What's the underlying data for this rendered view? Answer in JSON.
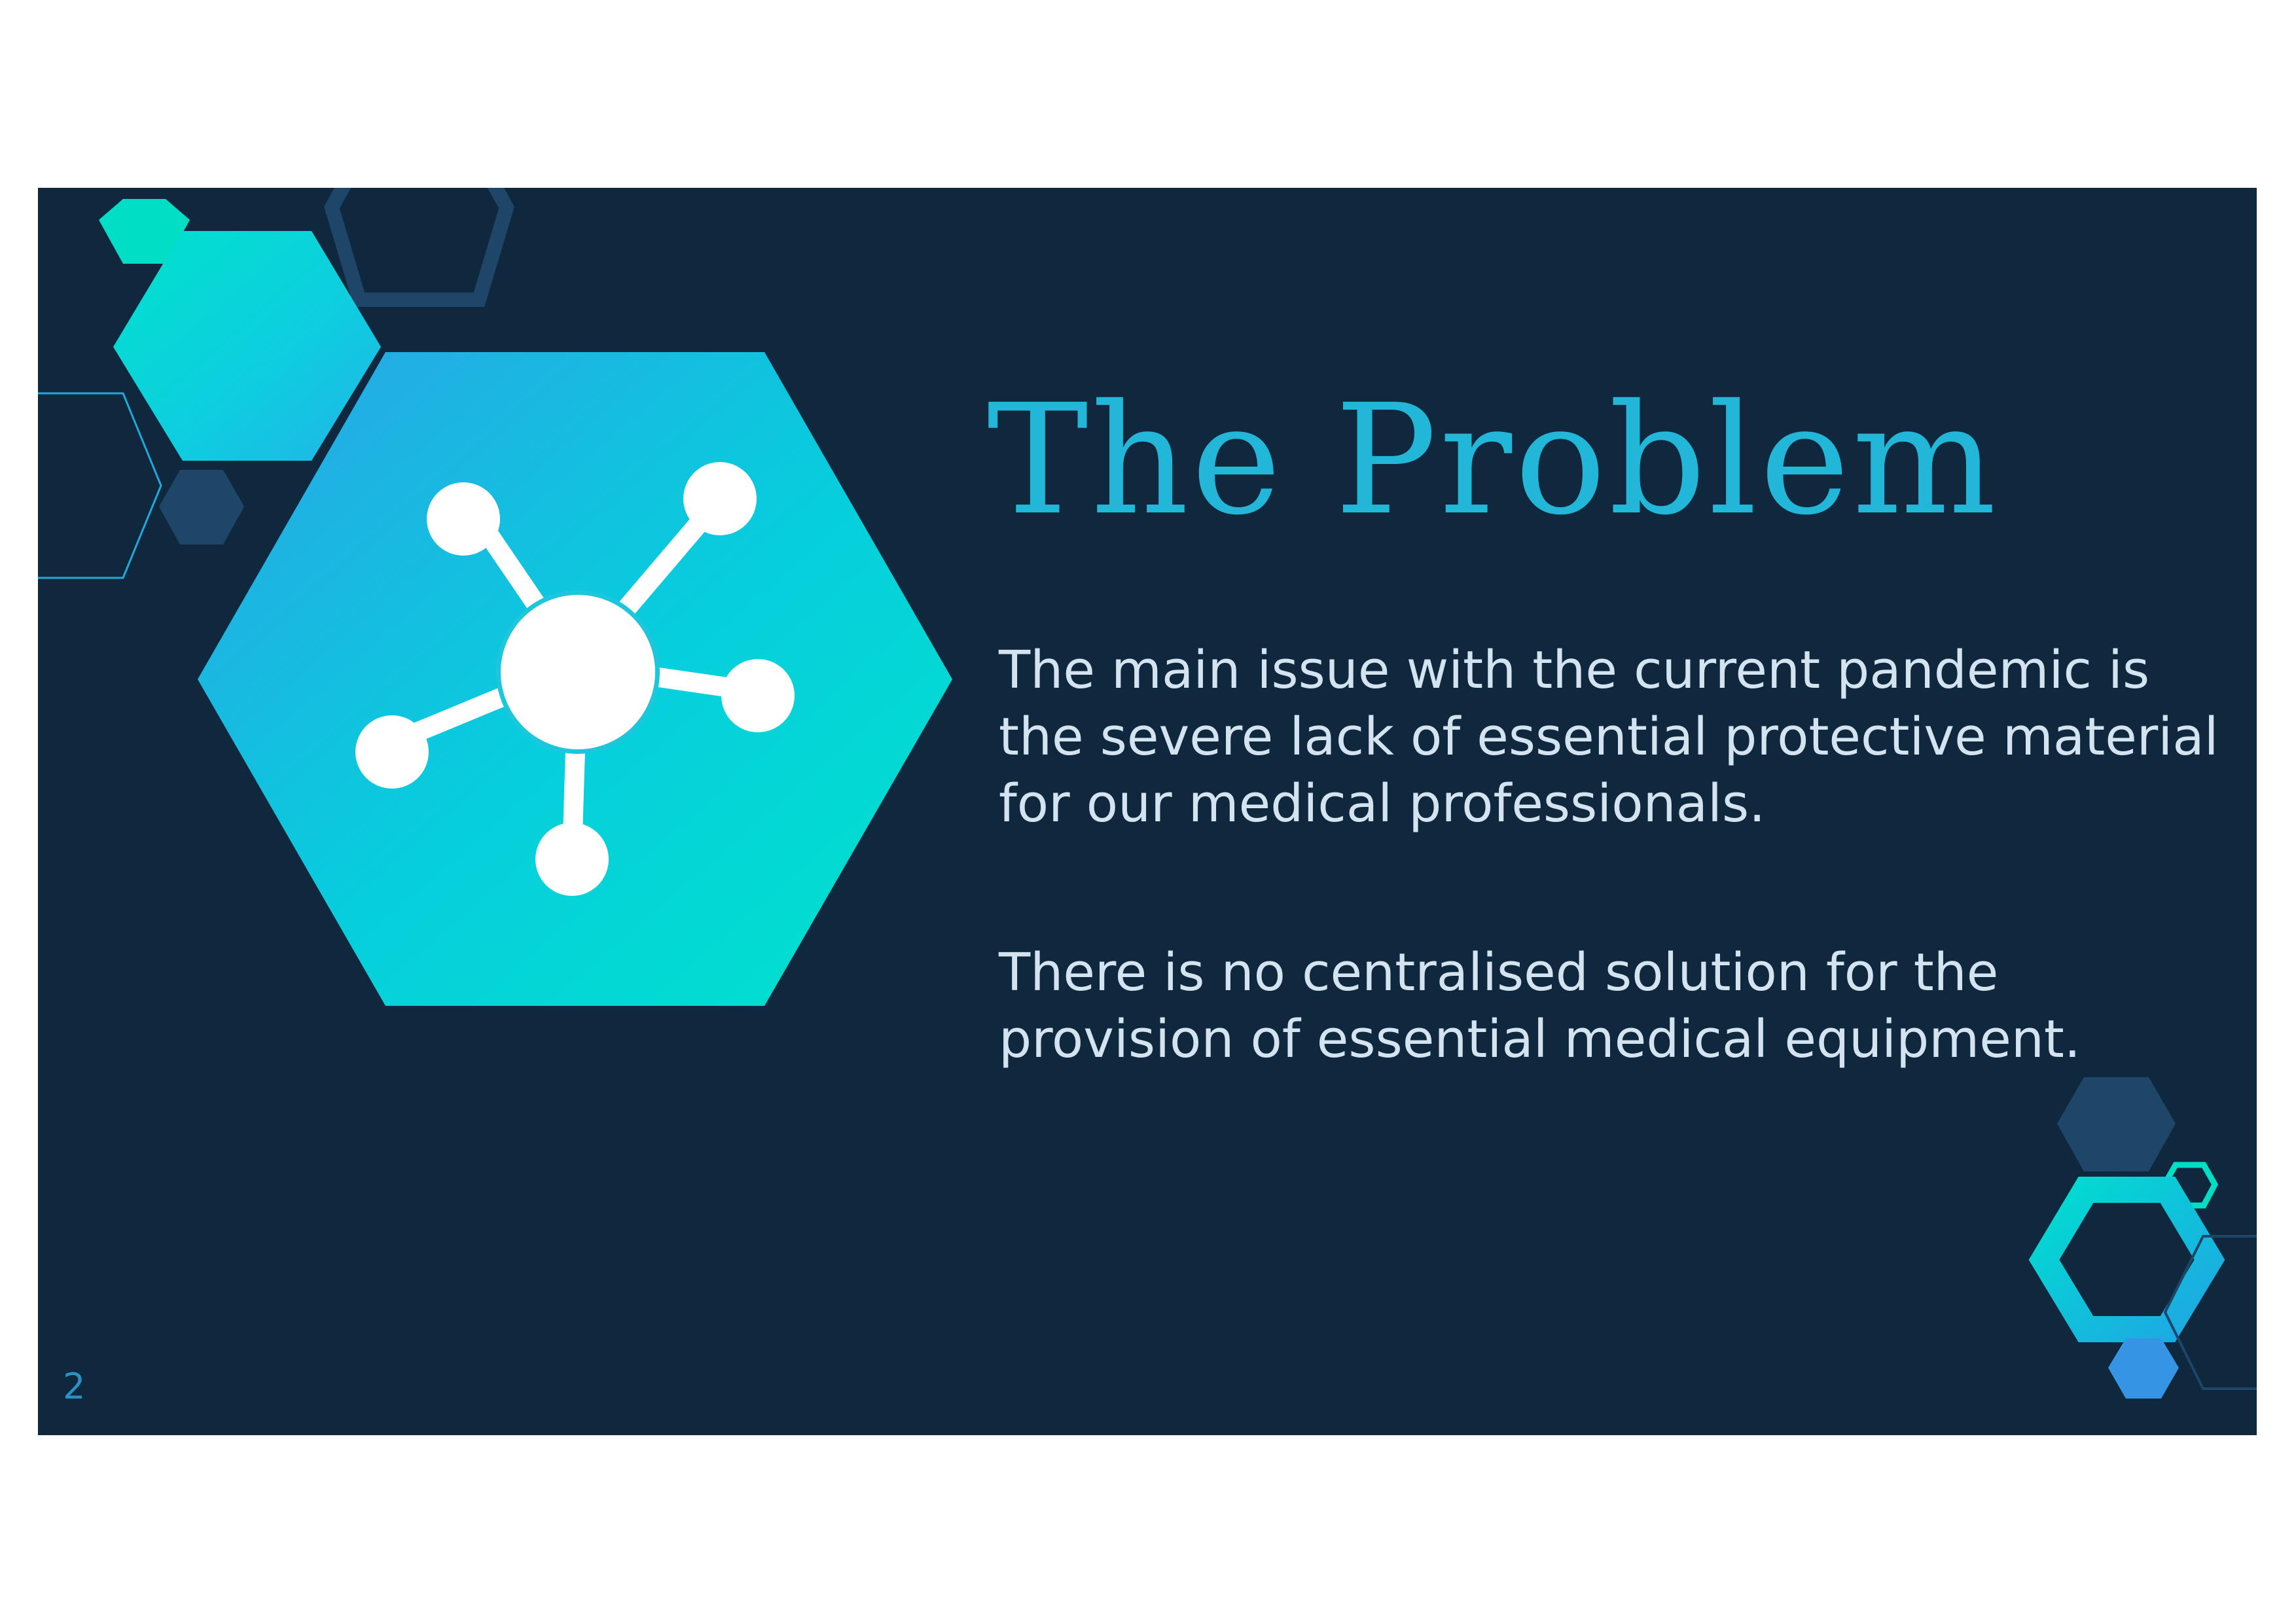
{
  "slide": {
    "title": "The Problem",
    "paragraphs": [
      "The main issue with the current pandemic is the severe lack of essential protective material for our medical professionals.",
      "There is no centralised solution for the provision of essential medical equipment."
    ],
    "page_number": "2",
    "main_icon": "network-molecule-icon"
  },
  "colors": {
    "background": "#10283d",
    "accent_teal": "#00ddd0",
    "accent_blue": "#2ba4e6",
    "title": "#22b6d8",
    "body_text": "#d3e4f0",
    "dark_hexagon": "#1d4669"
  }
}
